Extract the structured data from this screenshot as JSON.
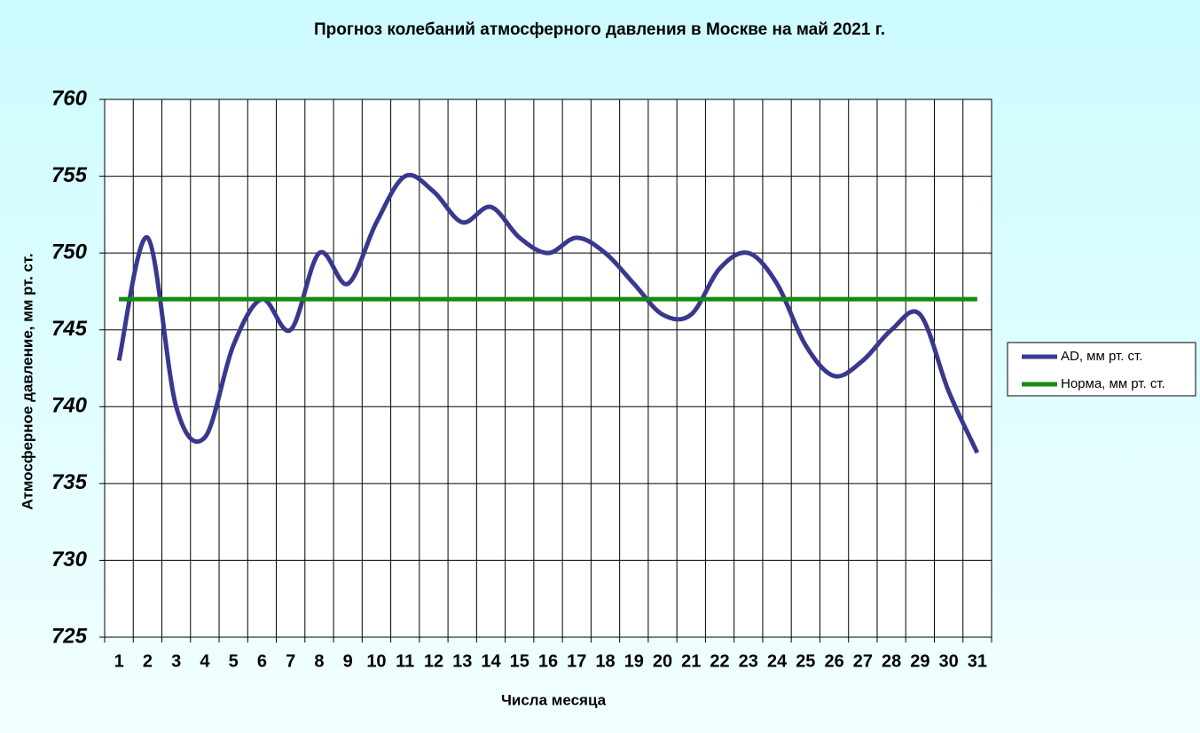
{
  "chart_data": {
    "type": "line",
    "title": "Прогноз колебаний атмосферного  давления в Москве на май 2021 г.",
    "x_label": "Числа месяца",
    "y_label": "Атмосферное давление, мм рт. ст.",
    "categories": [
      "1",
      "2",
      "3",
      "4",
      "5",
      "6",
      "7",
      "8",
      "9",
      "10",
      "11",
      "12",
      "13",
      "14",
      "15",
      "16",
      "17",
      "18",
      "19",
      "20",
      "21",
      "22",
      "23",
      "24",
      "25",
      "26",
      "27",
      "28",
      "29",
      "30",
      "31"
    ],
    "series": [
      {
        "name": "AD, мм рт. ст.",
        "color": "#38388e",
        "values": [
          743,
          751,
          740,
          738,
          744,
          747,
          745,
          750,
          748,
          752,
          755,
          754,
          752,
          753,
          751,
          750,
          751,
          750,
          748,
          746,
          746,
          749,
          750,
          748,
          744,
          742,
          743,
          745,
          746,
          741,
          737
        ]
      },
      {
        "name": "Норма, мм рт. ст.",
        "color": "#158a15",
        "values": [
          747,
          747,
          747,
          747,
          747,
          747,
          747,
          747,
          747,
          747,
          747,
          747,
          747,
          747,
          747,
          747,
          747,
          747,
          747,
          747,
          747,
          747,
          747,
          747,
          747,
          747,
          747,
          747,
          747,
          747,
          747
        ]
      }
    ],
    "ylim": [
      725,
      760
    ],
    "yticks": [
      725,
      730,
      735,
      740,
      745,
      750,
      755,
      760
    ],
    "grid": true,
    "smooth": true,
    "legend": "right"
  }
}
